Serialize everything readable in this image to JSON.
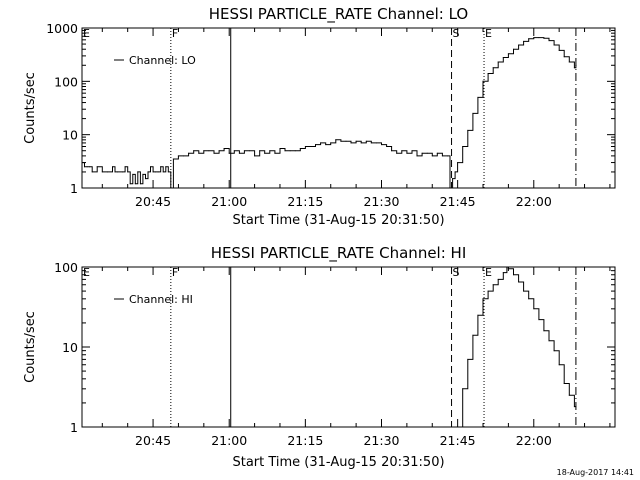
{
  "chart_data": [
    {
      "type": "line",
      "title": "HESSI PARTICLE_RATE Channel: LO",
      "ylabel": "Counts/sec",
      "xlabel": "Start Time (31-Aug-15 20:31:50)",
      "yscale": "log",
      "ylim": [
        1,
        1000
      ],
      "yticks": [
        1,
        10,
        100,
        1000
      ],
      "ytick_labels": [
        "1",
        "10",
        "100",
        "1000"
      ],
      "xlim_min": [
        0,
        105
      ],
      "xticks_min": [
        14,
        29,
        44,
        59,
        74,
        89
      ],
      "xtick_labels": [
        "20:45",
        "21:00",
        "21:15",
        "21:30",
        "21:45",
        "22:00"
      ],
      "legend": {
        "entries": [
          "Channel: LO"
        ],
        "position": "upper-left"
      },
      "vlines": [
        {
          "x": 17.5,
          "label": "F",
          "style": "dotted"
        },
        {
          "x": 29.3,
          "label": "",
          "style": "solid"
        },
        {
          "x": 72.8,
          "label": "S",
          "style": "dashed"
        },
        {
          "x": 79.2,
          "label": "E",
          "style": "dotted"
        },
        {
          "x": 97.3,
          "label": "",
          "style": "dashdot"
        }
      ],
      "corner_label": "E",
      "series": [
        {
          "x": [
            0,
            0.5,
            1,
            1.5,
            2,
            3,
            4,
            5,
            6,
            6.5,
            7,
            8,
            8.5,
            9,
            9.5,
            10,
            10.5,
            11,
            11.5,
            12,
            12.5,
            13,
            13.5,
            14,
            14.5,
            15,
            15.5,
            16,
            16.5,
            17,
            17.5,
            18,
            19,
            20,
            21,
            22,
            23,
            24,
            25,
            26,
            27,
            28,
            29,
            30,
            31,
            32,
            33,
            34,
            35,
            36,
            37,
            38,
            39,
            40,
            41,
            42,
            43,
            44,
            45,
            46,
            47,
            48,
            49,
            50,
            51,
            52,
            53,
            54,
            55,
            56,
            57,
            58,
            59,
            60,
            61,
            62,
            63,
            64,
            65,
            66,
            67,
            68,
            69,
            70,
            71,
            72,
            72.5,
            73,
            73.5,
            74,
            75,
            76,
            77,
            78,
            79,
            80,
            81,
            82,
            83,
            84,
            85,
            86,
            87,
            88,
            89,
            90,
            91,
            92,
            93,
            94,
            95,
            96,
            97,
            97.3
          ],
          "y": [
            3,
            2.5,
            2.5,
            2.5,
            2,
            2.5,
            2,
            2,
            2.5,
            2,
            2,
            2,
            2.5,
            2,
            1.2,
            1.8,
            1.2,
            2,
            1.2,
            1.8,
            1.5,
            2,
            2.5,
            2,
            2,
            2,
            2.5,
            2,
            2.5,
            2,
            1,
            3.5,
            4,
            4,
            4.5,
            5,
            4.5,
            5,
            5,
            4.5,
            5,
            5.5,
            4.5,
            5,
            4.5,
            5,
            5,
            4,
            5,
            4.5,
            5,
            4.5,
            5.5,
            5,
            5,
            5,
            5.5,
            6,
            6,
            6.5,
            7,
            6.5,
            7,
            8,
            7.5,
            7.5,
            7,
            7.5,
            7,
            7.5,
            7,
            7,
            6.5,
            6,
            5,
            4.5,
            5,
            4.5,
            5,
            4,
            4.5,
            4.5,
            4,
            4.5,
            4,
            4,
            1,
            1.5,
            2,
            3,
            6,
            12,
            25,
            50,
            100,
            140,
            180,
            230,
            280,
            330,
            400,
            480,
            560,
            630,
            660,
            660,
            640,
            580,
            480,
            380,
            290,
            230,
            180,
            200
          ]
        }
      ]
    },
    {
      "type": "line",
      "title": "HESSI PARTICLE_RATE Channel: HI",
      "ylabel": "Counts/sec",
      "xlabel": "Start Time (31-Aug-15 20:31:50)",
      "yscale": "log",
      "ylim": [
        1,
        100
      ],
      "yticks": [
        1,
        10,
        100
      ],
      "ytick_labels": [
        "1",
        "10",
        "100"
      ],
      "xlim_min": [
        0,
        105
      ],
      "xticks_min": [
        14,
        29,
        44,
        59,
        74,
        89
      ],
      "xtick_labels": [
        "20:45",
        "21:00",
        "21:15",
        "21:30",
        "21:45",
        "22:00"
      ],
      "legend": {
        "entries": [
          "Channel: HI"
        ],
        "position": "upper-left"
      },
      "vlines": [
        {
          "x": 17.5,
          "label": "F",
          "style": "dotted"
        },
        {
          "x": 29.3,
          "label": "",
          "style": "solid"
        },
        {
          "x": 72.8,
          "label": "S",
          "style": "dashed"
        },
        {
          "x": 79.2,
          "label": "E",
          "style": "dotted"
        },
        {
          "x": 97.3,
          "label": "",
          "style": "dashdot"
        }
      ],
      "corner_label": "E",
      "series": [
        {
          "x": [
            74.6,
            75,
            76,
            77,
            78,
            79,
            80,
            81,
            82,
            83,
            83.7,
            84,
            85,
            86,
            87,
            88,
            89,
            90,
            91,
            92,
            93,
            94,
            95,
            96,
            97,
            97.3
          ],
          "y": [
            1,
            3,
            7,
            14,
            25,
            40,
            50,
            60,
            70,
            85,
            100,
            95,
            80,
            65,
            50,
            40,
            30,
            22,
            16,
            12,
            9,
            6,
            3.5,
            2.5,
            1.8,
            1.8
          ]
        }
      ]
    }
  ],
  "footer": {
    "timestamp": "18-Aug-2017 14:41"
  }
}
